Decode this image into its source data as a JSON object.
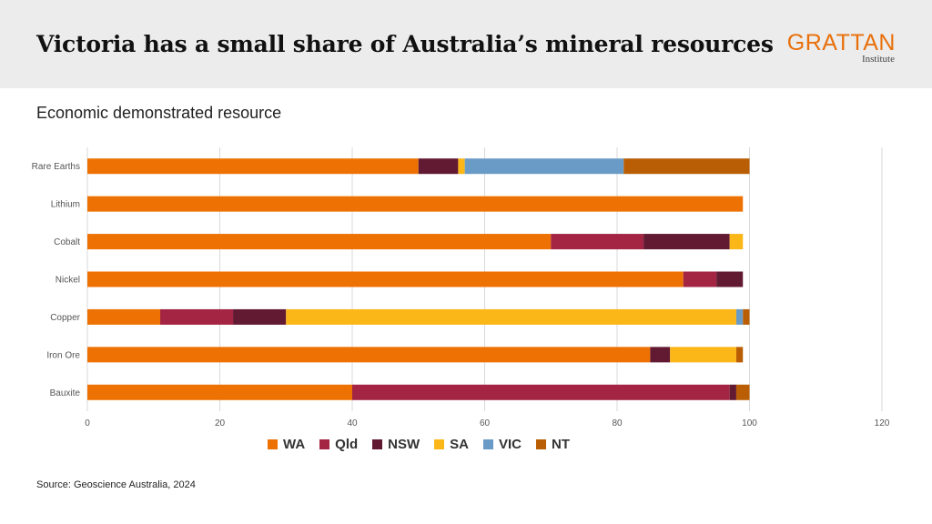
{
  "header": {
    "title": "Victoria has a small share of Australia’s mineral resources",
    "logo_main": "GRATTAN",
    "logo_sub": "Institute"
  },
  "subtitle": "Economic demonstrated resource",
  "source": "Source: Geoscience Australia, 2024",
  "chart_data": {
    "type": "bar",
    "orientation": "horizontal",
    "stacked": true,
    "title": "Economic demonstrated resource",
    "categories": [
      "Rare Earths",
      "Lithium",
      "Cobalt",
      "Nickel",
      "Copper",
      "Iron Ore",
      "Bauxite"
    ],
    "series": [
      {
        "name": "WA",
        "color": "#ee7203",
        "values": [
          50,
          99,
          70,
          90,
          11,
          85,
          40
        ]
      },
      {
        "name": "Qld",
        "color": "#a32443",
        "values": [
          0,
          0,
          14,
          5,
          11,
          0,
          57
        ]
      },
      {
        "name": "NSW",
        "color": "#621a33",
        "values": [
          6,
          0,
          13,
          4,
          8,
          3,
          1
        ]
      },
      {
        "name": "SA",
        "color": "#fbb718",
        "values": [
          1,
          0,
          2,
          0,
          68,
          10,
          0
        ]
      },
      {
        "name": "VIC",
        "color": "#6a9bc6",
        "values": [
          24,
          0,
          0,
          0,
          1,
          0,
          0
        ]
      },
      {
        "name": "NT",
        "color": "#b95e04",
        "values": [
          19,
          0,
          0,
          0,
          1,
          1,
          2
        ]
      }
    ],
    "xlim": [
      0,
      120
    ],
    "xticks": [
      0,
      20,
      40,
      60,
      80,
      100,
      120
    ],
    "grid": true,
    "legend_position": "bottom"
  }
}
